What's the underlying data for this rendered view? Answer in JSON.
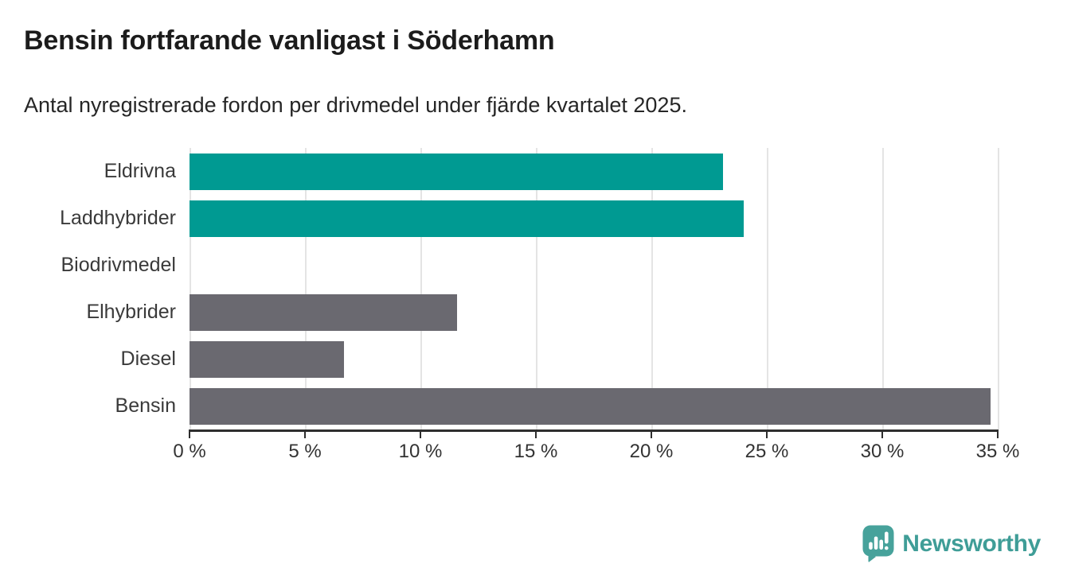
{
  "title": "Bensin fortfarande vanligast i Söderhamn",
  "subtitle": "Antal nyregistrerade fordon per drivmedel under fjärde kvartalet 2025.",
  "chart_data": {
    "type": "bar",
    "orientation": "horizontal",
    "title": "Bensin fortfarande vanligast i Söderhamn",
    "subtitle": "Antal nyregistrerade fordon per drivmedel under fjärde kvartalet 2025.",
    "categories": [
      "Eldrivna",
      "Laddhybrider",
      "Biodrivmedel",
      "Elhybrider",
      "Diesel",
      "Bensin"
    ],
    "values": [
      23.1,
      24.0,
      0,
      11.6,
      6.7,
      34.7
    ],
    "unit": "%",
    "xlabel": "",
    "ylabel": "",
    "xlim": [
      0,
      35
    ],
    "x_ticks": [
      0,
      5,
      10,
      15,
      20,
      25,
      30,
      35
    ],
    "x_tick_labels": [
      "0 %",
      "5 %",
      "10 %",
      "15 %",
      "20 %",
      "25 %",
      "30 %",
      "35 %"
    ],
    "grid": true,
    "legend": false,
    "bar_colors": [
      "#009A92",
      "#009A92",
      "#009A92",
      "#6A6970",
      "#6A6970",
      "#6A6970"
    ]
  },
  "colors": {
    "accent_teal": "#009A92",
    "bar_gray": "#6A6970",
    "gridline": "#E4E4E4",
    "axis": "#2E2E2E",
    "logo_teal": "#47A29B",
    "logo_text_teal": "#3F9D97"
  },
  "logo": {
    "text": "Newsworthy",
    "icon": "newsworthy-speech-bubble-bar-chart-icon"
  }
}
